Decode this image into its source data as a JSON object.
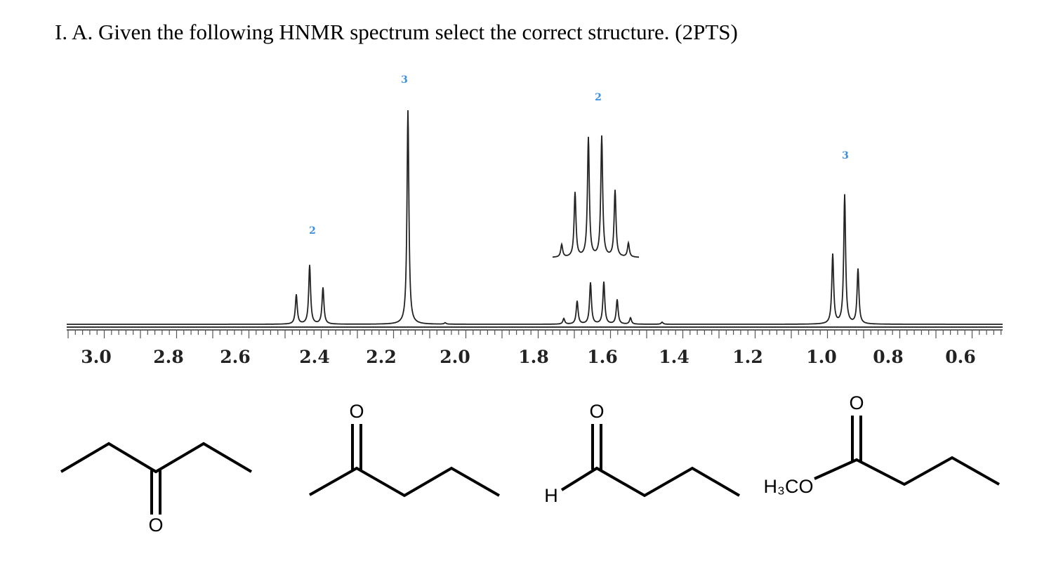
{
  "question": {
    "title": "I. A. Given the following HNMR spectrum select the correct structure. (2PTS)"
  },
  "spectrum": {
    "axis_labels": [
      "3.0",
      "2.8",
      "2.6",
      "2.4",
      "2.2",
      "2.0",
      "1.8",
      "1.6",
      "1.4",
      "1.2",
      "1.0",
      "0.8",
      "0.6"
    ],
    "integrations": [
      "2",
      "3",
      "2",
      "3"
    ]
  },
  "structures": [
    {
      "atoms": [
        "O"
      ]
    },
    {
      "atoms": [
        "O"
      ]
    },
    {
      "atoms": [
        "O",
        "H"
      ]
    },
    {
      "atoms": [
        "O",
        "H₃CO"
      ]
    }
  ]
}
